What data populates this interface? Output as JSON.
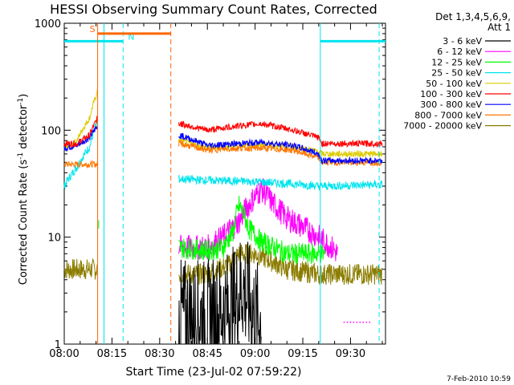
{
  "chart_data": {
    "type": "line",
    "title": "HESSI Observing Summary Count Rates, Corrected",
    "xlabel": "Start Time (23-Jul-02 07:59:22)",
    "ylabel": "Corrected Count Rate (s",
    "ylabel_sup1": "-1",
    "ylabel_mid": " detector",
    "ylabel_sup2": "-1",
    "ylabel_end": ")",
    "footer": "7-Feb-2010 10:59",
    "legend_header": [
      "Det 1,3,4,5,6,9,",
      "Att 1"
    ],
    "y_scale": "log",
    "ylim": [
      1,
      1000
    ],
    "y_ticks": [
      {
        "v": 1,
        "label": "1"
      },
      {
        "v": 10,
        "label": "10"
      },
      {
        "v": 100,
        "label": "100"
      },
      {
        "v": 1000,
        "label": "1000"
      }
    ],
    "xlim_minutes": [
      0,
      101
    ],
    "x_ticks": [
      {
        "label": "08:00",
        "m": 0
      },
      {
        "label": "08:15",
        "m": 15
      },
      {
        "label": "08:30",
        "m": 30
      },
      {
        "label": "08:45",
        "m": 45
      },
      {
        "label": "09:00",
        "m": 60
      },
      {
        "label": "09:15",
        "m": 75
      },
      {
        "label": "09:30",
        "m": 90
      }
    ],
    "saa": {
      "label": "S",
      "start": 10.5,
      "end": 33.5,
      "color": "#ff6600"
    },
    "night": {
      "label": "N",
      "color": "#00e5ee",
      "segments": [
        [
          0,
          18.5
        ],
        [
          80.5,
          101
        ]
      ],
      "boundaries": [
        12.5,
        80.5
      ],
      "ends": [
        18.5,
        99
      ]
    },
    "series": [
      {
        "name": "3 - 6 keV",
        "color": "#000000"
      },
      {
        "name": "6 - 12 keV",
        "color": "#ff00ff"
      },
      {
        "name": "12 - 25 keV",
        "color": "#00ff00"
      },
      {
        "name": "25 - 50 keV",
        "color": "#00e5ee"
      },
      {
        "name": "50 - 100 keV",
        "color": "#ddcc00"
      },
      {
        "name": "100 - 300 keV",
        "color": "#ff0000"
      },
      {
        "name": "300 - 800 keV",
        "color": "#0000ff"
      },
      {
        "name": "800 - 7000 keV",
        "color": "#ff7700"
      },
      {
        "name": "7000 - 20000 keV",
        "color": "#8b7d00"
      }
    ],
    "data": {
      "seg1": {
        "100 - 300 keV": {
          "x": [
            0,
            4,
            8,
            10.5
          ],
          "y": [
            75,
            75,
            90,
            130
          ]
        },
        "300 - 800 keV": {
          "x": [
            0,
            4,
            8,
            10.5
          ],
          "y": [
            68,
            72,
            85,
            110
          ]
        },
        "50 - 100 keV": {
          "x": [
            0,
            4,
            8,
            10.5
          ],
          "y": [
            65,
            80,
            130,
            230
          ]
        },
        "25 - 50 keV": {
          "x": [
            0,
            4,
            8,
            10.5
          ],
          "y": [
            30,
            45,
            70,
            120
          ]
        },
        "800 - 7000 keV": {
          "x": [
            0,
            10.5
          ],
          "y": [
            48,
            48
          ]
        },
        "12 - 25 keV": {
          "x": [
            10.8
          ],
          "y": [
            12
          ]
        },
        "7000 - 20000 keV": {
          "x": [
            0,
            10.5
          ],
          "y": [
            5,
            5
          ]
        }
      },
      "seg2": {
        "100 - 300 keV": {
          "x": [
            36,
            45,
            55,
            62,
            72,
            80,
            81,
            100
          ],
          "y": [
            115,
            100,
            110,
            115,
            100,
            85,
            75,
            75
          ]
        },
        "300 - 800 keV": {
          "x": [
            36,
            45,
            55,
            62,
            72,
            80,
            81,
            100
          ],
          "y": [
            90,
            72,
            75,
            77,
            72,
            60,
            52,
            52
          ]
        },
        "50 - 100 keV": {
          "x": [
            36,
            45,
            55,
            62,
            72,
            80,
            81,
            100
          ],
          "y": [
            80,
            68,
            72,
            73,
            70,
            63,
            60,
            60
          ]
        },
        "800 - 7000 keV": {
          "x": [
            36,
            45,
            55,
            62,
            72,
            80,
            81,
            100
          ],
          "y": [
            75,
            65,
            68,
            68,
            65,
            55,
            50,
            50
          ]
        },
        "25 - 50 keV": {
          "x": [
            36,
            45,
            60,
            75,
            80,
            81,
            100
          ],
          "y": [
            35,
            34,
            33,
            31,
            30,
            30,
            31
          ]
        },
        "6 - 12 keV": {
          "x": [
            36,
            45,
            50,
            55,
            58,
            62,
            66,
            70,
            76,
            80,
            86
          ],
          "y": [
            8,
            8,
            10,
            14,
            20,
            28,
            20,
            15,
            12,
            10,
            7
          ]
        },
        "12 - 25 keV": {
          "x": [
            36,
            45,
            50,
            53,
            55,
            58,
            62,
            70,
            78,
            80,
            82
          ],
          "y": [
            8,
            7.5,
            8,
            11,
            20,
            12,
            9,
            7,
            7,
            7,
            7
          ]
        },
        "7000 - 20000 keV": {
          "x": [
            36,
            45,
            52,
            55,
            60,
            65,
            70,
            80,
            100
          ],
          "y": [
            4.5,
            4.5,
            5.5,
            7,
            7,
            6,
            5,
            4.5,
            4.5
          ]
        },
        "3 - 6 keV": {
          "x": [
            36,
            45,
            50,
            54,
            56,
            58,
            60,
            62
          ],
          "y": [
            1.8,
            1.8,
            2,
            2.5,
            3.5,
            2.5,
            1.8,
            1.6
          ]
        }
      }
    },
    "dots": {
      "series": "6 - 12 keV",
      "x": [
        88,
        89,
        90,
        91,
        92,
        93,
        94,
        95,
        96
      ],
      "y": 1.6
    }
  }
}
